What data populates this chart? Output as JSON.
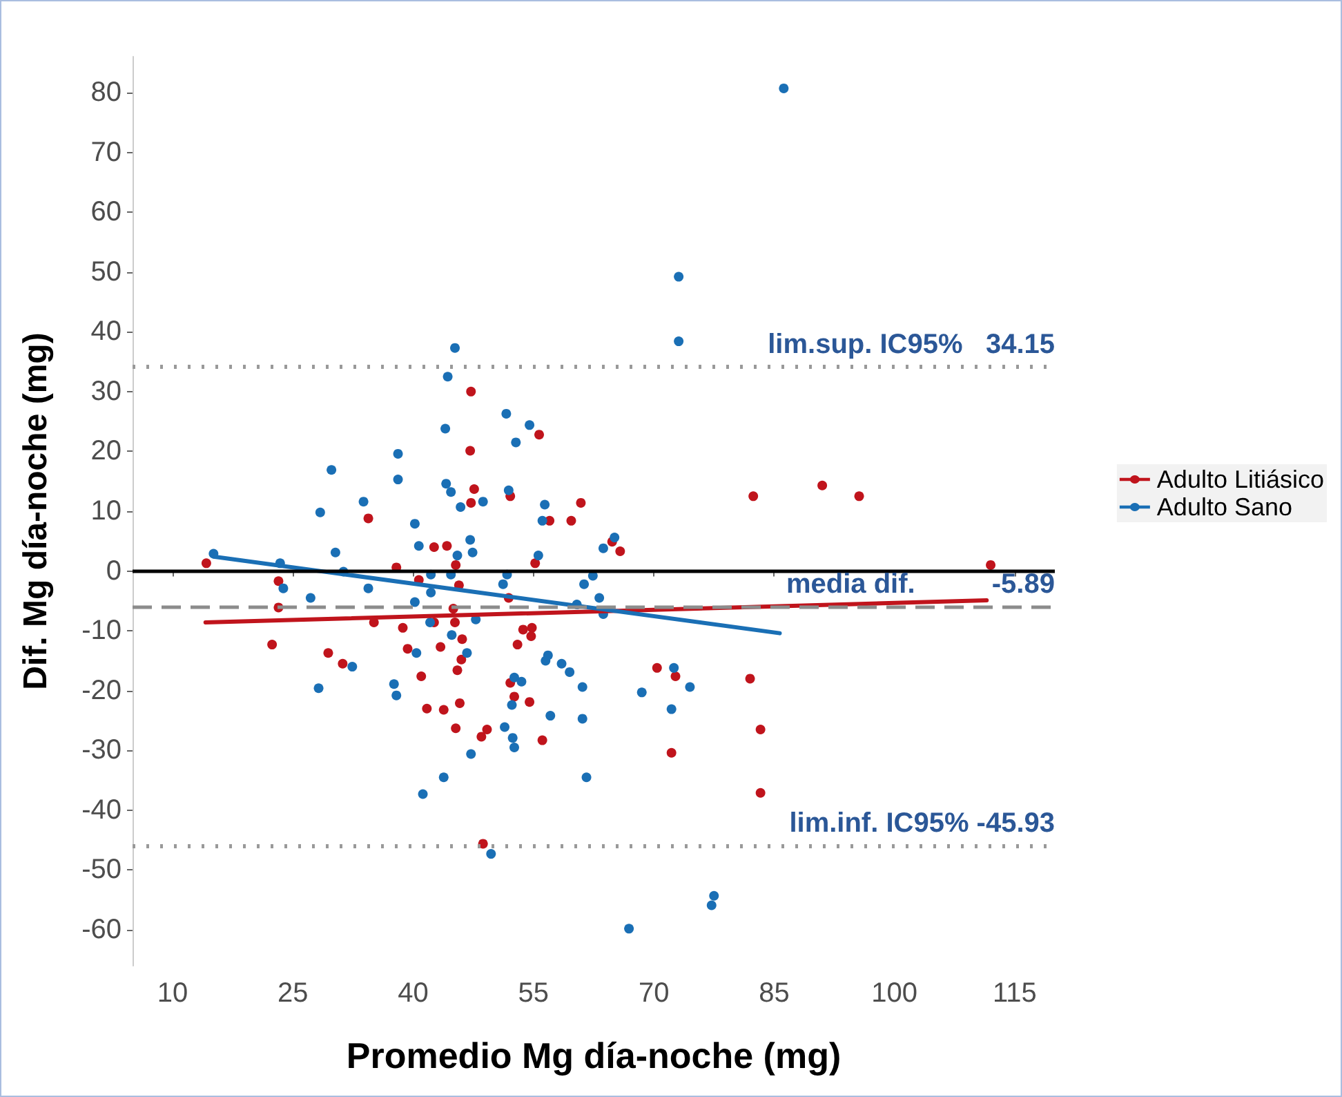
{
  "chart_data": {
    "type": "scatter",
    "xlabel": "Promedio Mg día-noche (mg)",
    "ylabel": "Dif. Mg día-noche (mg)",
    "xlim": [
      5,
      120
    ],
    "xticks": [
      10,
      25,
      40,
      55,
      70,
      85,
      100,
      115
    ],
    "ylim": [
      -66,
      86
    ],
    "yticks": [
      -60,
      -50,
      -40,
      -30,
      -20,
      -10,
      0,
      10,
      20,
      30,
      40,
      50,
      60,
      70,
      80
    ],
    "grid": false,
    "legend": "right",
    "marker": "circle",
    "series": [
      {
        "name": "Adulto Litiásico",
        "color": "#c0141c",
        "x": [
          14.2,
          34.4,
          42.6,
          44.2,
          37.9,
          45.3,
          23.2,
          40.7,
          45.7,
          23.2,
          45.0,
          35.1,
          42.6,
          45.2,
          38.7,
          22.4,
          39.3,
          43.4,
          46.1,
          47.2,
          55.7,
          47.1,
          47.6,
          47.2,
          52.1,
          60.9,
          57.0,
          59.7,
          64.8,
          65.8,
          55.2,
          51.9,
          53.7,
          54.8,
          54.7,
          53.0,
          82.4,
          29.4,
          31.2,
          46.0,
          45.5,
          41.0,
          41.7,
          43.8,
          45.8,
          45.3,
          52.1,
          52.6,
          54.5,
          48.5,
          49.2,
          56.1,
          70.4,
          72.7,
          82.0,
          72.2,
          83.3,
          83.3,
          48.7,
          91.0,
          95.6,
          112.0
        ],
        "values": [
          1.3,
          8.8,
          4.0,
          4.2,
          0.6,
          1.0,
          -1.7,
          -1.5,
          -2.4,
          -6.1,
          -6.3,
          -8.6,
          -8.6,
          -8.6,
          -9.5,
          -12.3,
          -13.0,
          -12.7,
          -11.4,
          30.0,
          22.8,
          20.1,
          13.7,
          11.4,
          12.5,
          11.4,
          8.4,
          8.4,
          4.9,
          3.3,
          1.3,
          -4.5,
          -9.8,
          -9.5,
          -10.9,
          -12.3,
          12.5,
          -13.7,
          -15.5,
          -14.8,
          -16.6,
          -17.6,
          -23.0,
          -23.2,
          -22.1,
          -26.3,
          -18.7,
          -21.0,
          -21.9,
          -27.7,
          -26.5,
          -28.3,
          -16.2,
          -17.6,
          -18.0,
          -30.4,
          -26.5,
          -37.1,
          -45.6,
          14.3,
          12.5,
          1.0
        ]
      },
      {
        "name": "Adulto Sano",
        "color": "#1a6fb5",
        "x": [
          45.2,
          44.3,
          44.0,
          38.1,
          29.8,
          38.1,
          44.1,
          44.7,
          33.8,
          28.4,
          45.9,
          40.2,
          40.7,
          30.3,
          45.5,
          15.1,
          23.4,
          31.3,
          42.2,
          44.7,
          23.8,
          34.4,
          27.2,
          42.2,
          40.2,
          42.1,
          44.8,
          73.1,
          51.6,
          54.5,
          52.8,
          51.9,
          48.7,
          56.4,
          56.1,
          47.1,
          47.4,
          55.6,
          63.7,
          65.1,
          51.7,
          51.2,
          61.3,
          62.4,
          63.2,
          60.4,
          63.7,
          47.8,
          73.1,
          40.4,
          32.4,
          28.2,
          37.6,
          37.9,
          43.8,
          41.2,
          46.7,
          56.5,
          56.8,
          58.5,
          59.5,
          61.1,
          52.6,
          53.5,
          52.3,
          57.1,
          61.1,
          68.5,
          72.5,
          74.5,
          72.2,
          51.4,
          52.4,
          52.6,
          47.2,
          61.6,
          49.7,
          66.9,
          77.2,
          77.5,
          86.2
        ],
        "values": [
          37.3,
          32.5,
          23.8,
          19.6,
          16.9,
          15.3,
          14.6,
          13.2,
          11.6,
          9.8,
          10.7,
          7.9,
          4.2,
          3.1,
          2.6,
          2.9,
          1.3,
          -0.1,
          -0.6,
          -0.6,
          -2.9,
          -2.9,
          -4.5,
          -3.6,
          -5.2,
          -8.6,
          -10.7,
          49.2,
          26.3,
          24.4,
          21.5,
          13.5,
          11.6,
          11.1,
          8.4,
          5.2,
          3.1,
          2.6,
          3.8,
          5.6,
          -0.6,
          -2.2,
          -2.2,
          -0.8,
          -4.5,
          -5.6,
          -7.2,
          -8.1,
          38.4,
          -13.7,
          -16.0,
          -19.6,
          -18.9,
          -20.8,
          -34.5,
          -37.3,
          -13.7,
          -15.0,
          -14.1,
          -15.5,
          -16.9,
          -19.4,
          -17.8,
          -18.5,
          -22.4,
          -24.2,
          -24.7,
          -20.3,
          -16.2,
          -19.4,
          -23.1,
          -26.1,
          -27.9,
          -29.5,
          -30.6,
          -34.5,
          -47.3,
          -59.8,
          -55.9,
          -54.3,
          80.7
        ]
      },
      {
        "type": "line",
        "color": "#c0141c",
        "marker": "none",
        "x": [
          14.1,
          111.5
        ],
        "values": [
          -8.6,
          -4.9
        ]
      },
      {
        "type": "line",
        "color": "#1a6fb5",
        "marker": "none",
        "x": [
          15.1,
          85.7
        ],
        "values": [
          2.4,
          -10.4
        ]
      }
    ],
    "ref_lines": [
      {
        "axis": "y",
        "value": 0,
        "color": "#000000",
        "line_style": "solid"
      },
      {
        "axis": "y",
        "value": 34.15,
        "label": "lim.sup. IC95%   34.15",
        "color": "#999999",
        "line_style": "dotted"
      },
      {
        "axis": "y",
        "value": -5.89,
        "label": "media dif.          -5.89",
        "color": "#8c8c8c",
        "line_style": "dashed"
      },
      {
        "axis": "y",
        "value": -45.93,
        "label": "lim.inf. IC95% -45.93",
        "color": "#999999",
        "line_style": "dotted"
      }
    ]
  }
}
